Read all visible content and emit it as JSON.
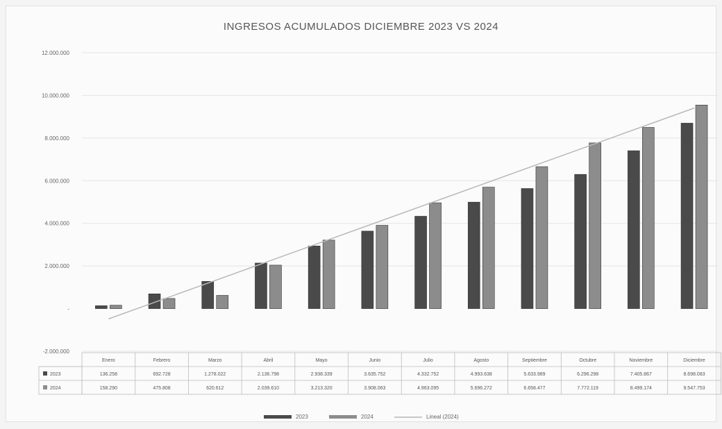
{
  "chart_data": {
    "type": "bar",
    "title": "INGRESOS ACUMULADOS DICIEMBRE 2023 VS 2024",
    "categories": [
      "Enero",
      "Febrero",
      "Marzo",
      "Abril",
      "Mayo",
      "Junio",
      "Julio",
      "Agosto",
      "Septiembre",
      "Octubre",
      "Noviembre",
      "Diciembre"
    ],
    "series": [
      {
        "name": "2023",
        "color": "#4a4a4a",
        "values": [
          136258,
          692728,
          1278022,
          2136798,
          2938339,
          3635752,
          4332752,
          4993638,
          5633989,
          6296298,
          7405867,
          8698083
        ],
        "labels": [
          "136.258",
          "692.728",
          "1.278.022",
          "2.136.798",
          "2.938.339",
          "3.635.752",
          "4.332.752",
          "4.993.638",
          "5.633.989",
          "6.296.298",
          "7.405.867",
          "8.698.083"
        ]
      },
      {
        "name": "2024",
        "color": "#8c8c8c",
        "values": [
          158290,
          475808,
          620612,
          2039610,
          3213320,
          3908063,
          4963095,
          5696272,
          6658477,
          7772119,
          8499174,
          9547753
        ],
        "labels": [
          "158.290",
          "475.808",
          "620.612",
          "2.039.610",
          "3.213.320",
          "3.908.063",
          "4.963.095",
          "5.696.272",
          "6.658.477",
          "7.772.119",
          "8.499.174",
          "9.547.753"
        ]
      }
    ],
    "trendline": {
      "name": "Lineal (2024)",
      "color": "#b8b8b8"
    },
    "yticks": [
      "12.000.000",
      "10.000.000",
      "8.000.000",
      "6.000.000",
      "4.000.000",
      "2.000.000",
      "-",
      "-2.000.000"
    ],
    "ytick_values": [
      12000000,
      10000000,
      8000000,
      6000000,
      4000000,
      2000000,
      0,
      -2000000
    ],
    "ylim": [
      -2000000,
      12000000
    ],
    "grid": true,
    "legend_position": "bottom"
  }
}
